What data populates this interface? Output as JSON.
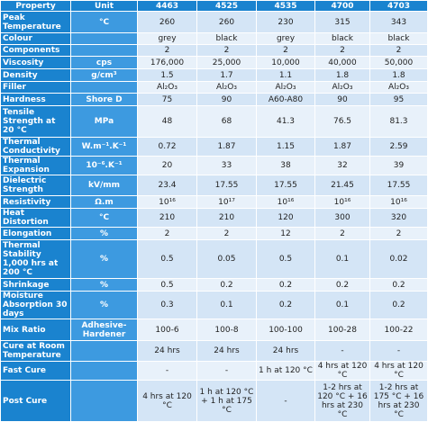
{
  "table": {
    "header": [
      "Property",
      "Unit",
      "4463",
      "4525",
      "4535",
      "4700",
      "4703"
    ],
    "rows": [
      [
        "Peak Temperature",
        "°C",
        "260",
        "260",
        "230",
        "315",
        "343"
      ],
      [
        "Colour",
        "",
        "grey",
        "black",
        "grey",
        "black",
        "black"
      ],
      [
        "Components",
        "",
        "2",
        "2",
        "2",
        "2",
        "2"
      ],
      [
        "Viscosity",
        "cps",
        "176,000",
        "25,000",
        "10,000",
        "40,000",
        "50,000"
      ],
      [
        "Density",
        "g/cm³",
        "1.5",
        "1.7",
        "1.1",
        "1.8",
        "1.8"
      ],
      [
        "Filler",
        "",
        "Al₂O₃",
        "Al₂O₃",
        "Al₂O₃",
        "Al₂O₃",
        "Al₂O₃"
      ],
      [
        "Hardness",
        "Shore D",
        "75",
        "90",
        "A60-A80",
        "90",
        "95"
      ],
      [
        "Tensile Strength at 20 °C",
        "MPa",
        "48",
        "68",
        "41.3",
        "76.5",
        "81.3"
      ],
      [
        "Thermal Conductivity",
        "W.m⁻¹.K⁻¹",
        "0.72",
        "1.87",
        "1.15",
        "1.87",
        "2.59"
      ],
      [
        "Thermal Expansion",
        "10⁻⁶.K⁻¹",
        "20",
        "33",
        "38",
        "32",
        "39"
      ],
      [
        "Dielectric Strength",
        "kV/mm",
        "23.4",
        "17.55",
        "17.55",
        "21.45",
        "17.55"
      ],
      [
        "Resistivity",
        "Ω.m",
        "10¹⁶",
        "10¹⁷",
        "10¹⁶",
        "10¹⁶",
        "10¹⁶"
      ],
      [
        "Heat Distortion",
        "°C",
        "210",
        "210",
        "120",
        "300",
        "320"
      ],
      [
        "Elongation",
        "%",
        "2",
        "2",
        "12",
        "2",
        "2"
      ],
      [
        "Thermal Stability 1,000 hrs at 200 °C",
        "%",
        "0.5",
        "0.05",
        "0.5",
        "0.1",
        "0.02"
      ],
      [
        "Shrinkage",
        "%",
        "0.5",
        "0.2",
        "0.2",
        "0.2",
        "0.2"
      ],
      [
        "Moisture Absorption 30 days",
        "%",
        "0.3",
        "0.1",
        "0.2",
        "0.1",
        "0.2"
      ],
      [
        "Mix Ratio",
        "Adhesive-Hardener",
        "100-6",
        "100-8",
        "100-100",
        "100-28",
        "100-22"
      ],
      [
        "Cure at Room Temperature",
        "",
        "24 hrs",
        "24 hrs",
        "24 hrs",
        "-",
        "-"
      ],
      [
        "Fast Cure",
        "",
        "-",
        "-",
        "1 h at 120 °C",
        "4 hrs at 120 °C",
        "4 hrs at 120 °C"
      ],
      [
        "Post Cure",
        "",
        "4 hrs at 120 °C",
        "1 h at 120 °C + 1 h at 175 °C",
        "-",
        "1-2 hrs at 120 °C + 16 hrs at 230 °C",
        "1-2 hrs at 175 °C + 16 hrs at 230 °C"
      ]
    ]
  }
}
